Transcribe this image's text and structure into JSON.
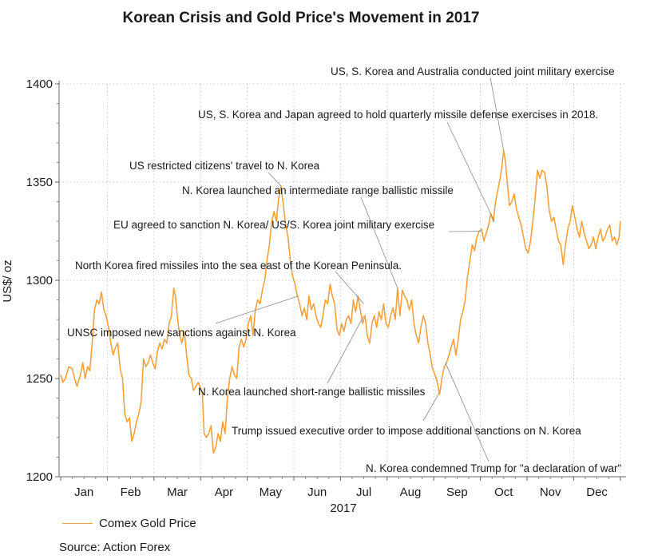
{
  "chart_data": {
    "type": "line",
    "title": "Korean Crisis and Gold Price's Movement in 2017",
    "xlabel": "2017",
    "ylabel": "US$/ oz",
    "ylim": [
      1200,
      1400
    ],
    "yticks": [
      1200,
      1250,
      1300,
      1350,
      1400
    ],
    "months": [
      "Jan",
      "Feb",
      "Mar",
      "Apr",
      "May",
      "Jun",
      "Jul",
      "Aug",
      "Sep",
      "Oct",
      "Nov",
      "Dec"
    ],
    "grid": true,
    "legend": "bottom-left",
    "series": [
      {
        "name": "Comex Gold Price",
        "color": "#f5a13a",
        "points": [
          [
            0.0,
            1252
          ],
          [
            0.1,
            1248
          ],
          [
            0.2,
            1250
          ],
          [
            0.35,
            1256
          ],
          [
            0.5,
            1255
          ],
          [
            0.6,
            1250
          ],
          [
            0.7,
            1246
          ],
          [
            0.85,
            1252
          ],
          [
            0.95,
            1258
          ],
          [
            1.05,
            1250
          ],
          [
            1.15,
            1256
          ],
          [
            1.25,
            1254
          ],
          [
            1.35,
            1268
          ],
          [
            1.45,
            1285
          ],
          [
            1.55,
            1290
          ],
          [
            1.65,
            1288
          ],
          [
            1.75,
            1294
          ],
          [
            1.85,
            1285
          ],
          [
            1.95,
            1282
          ],
          [
            2.05,
            1276
          ],
          [
            2.15,
            1268
          ],
          [
            2.25,
            1262
          ],
          [
            2.35,
            1266
          ],
          [
            2.45,
            1268
          ],
          [
            2.55,
            1255
          ],
          [
            2.65,
            1250
          ],
          [
            2.75,
            1232
          ],
          [
            2.85,
            1228
          ],
          [
            2.95,
            1230
          ],
          [
            3.05,
            1218
          ],
          [
            3.15,
            1222
          ],
          [
            3.25,
            1228
          ],
          [
            3.35,
            1232
          ],
          [
            3.45,
            1238
          ],
          [
            3.55,
            1260
          ],
          [
            3.65,
            1256
          ],
          [
            3.75,
            1258
          ],
          [
            3.85,
            1262
          ],
          [
            3.95,
            1258
          ],
          [
            4.05,
            1255
          ],
          [
            4.15,
            1264
          ],
          [
            4.25,
            1268
          ],
          [
            4.35,
            1265
          ],
          [
            4.45,
            1270
          ],
          [
            4.55,
            1268
          ],
          [
            4.65,
            1278
          ],
          [
            4.75,
            1282
          ],
          [
            4.85,
            1296
          ],
          [
            4.92,
            1292
          ],
          [
            5.0,
            1282
          ],
          [
            5.1,
            1272
          ],
          [
            5.2,
            1268
          ],
          [
            5.3,
            1274
          ],
          [
            5.4,
            1262
          ],
          [
            5.5,
            1252
          ],
          [
            5.6,
            1250
          ],
          [
            5.7,
            1244
          ],
          [
            5.8,
            1246
          ],
          [
            5.9,
            1248
          ],
          [
            6.0,
            1245
          ],
          [
            6.08,
            1242
          ],
          [
            6.15,
            1222
          ],
          [
            6.25,
            1220
          ],
          [
            6.35,
            1222
          ],
          [
            6.45,
            1226
          ],
          [
            6.55,
            1212
          ],
          [
            6.65,
            1215
          ],
          [
            6.75,
            1222
          ],
          [
            6.85,
            1218
          ],
          [
            6.95,
            1228
          ],
          [
            7.05,
            1222
          ],
          [
            7.15,
            1240
          ],
          [
            7.25,
            1250
          ],
          [
            7.35,
            1256
          ],
          [
            7.45,
            1252
          ],
          [
            7.55,
            1250
          ],
          [
            7.65,
            1266
          ],
          [
            7.75,
            1270
          ],
          [
            7.85,
            1266
          ],
          [
            7.95,
            1270
          ],
          [
            8.05,
            1278
          ],
          [
            8.15,
            1282
          ],
          [
            8.25,
            1272
          ],
          [
            8.35,
            1285
          ],
          [
            8.45,
            1290
          ],
          [
            8.55,
            1288
          ],
          [
            8.65,
            1295
          ],
          [
            8.75,
            1300
          ],
          [
            8.85,
            1310
          ],
          [
            8.95,
            1318
          ],
          [
            9.05,
            1330
          ],
          [
            9.15,
            1335
          ],
          [
            9.25,
            1330
          ],
          [
            9.35,
            1342
          ],
          [
            9.45,
            1348
          ],
          [
            9.55,
            1338
          ],
          [
            9.65,
            1328
          ],
          [
            9.75,
            1322
          ],
          [
            9.85,
            1310
          ],
          [
            9.95,
            1302
          ],
          [
            10.05,
            1298
          ],
          [
            10.15,
            1292
          ],
          [
            10.25,
            1288
          ],
          [
            10.35,
            1282
          ],
          [
            10.45,
            1286
          ],
          [
            10.55,
            1280
          ],
          [
            10.65,
            1292
          ],
          [
            10.75,
            1285
          ],
          [
            10.85,
            1288
          ],
          [
            10.95,
            1282
          ],
          [
            11.05,
            1278
          ],
          [
            11.15,
            1276
          ],
          [
            11.25,
            1282
          ],
          [
            11.35,
            1290
          ],
          [
            11.45,
            1288
          ],
          [
            11.55,
            1298
          ],
          [
            11.65,
            1292
          ],
          [
            11.75,
            1288
          ],
          [
            11.85,
            1275
          ],
          [
            11.95,
            1272
          ],
          [
            12.05,
            1278
          ],
          [
            12.15,
            1274
          ],
          [
            12.25,
            1280
          ],
          [
            12.35,
            1282
          ],
          [
            12.45,
            1278
          ],
          [
            12.55,
            1290
          ],
          [
            12.65,
            1284
          ],
          [
            12.75,
            1292
          ],
          [
            12.85,
            1285
          ],
          [
            12.95,
            1278
          ],
          [
            13.05,
            1282
          ],
          [
            13.15,
            1272
          ],
          [
            13.25,
            1268
          ],
          [
            13.35,
            1278
          ],
          [
            13.45,
            1282
          ],
          [
            13.55,
            1276
          ],
          [
            13.65,
            1284
          ],
          [
            13.75,
            1280
          ],
          [
            13.85,
            1288
          ],
          [
            13.95,
            1278
          ],
          [
            14.05,
            1276
          ],
          [
            14.15,
            1282
          ],
          [
            14.25,
            1286
          ],
          [
            14.35,
            1280
          ],
          [
            14.45,
            1296
          ],
          [
            14.55,
            1282
          ],
          [
            14.65,
            1295
          ],
          [
            14.75,
            1292
          ],
          [
            14.85,
            1290
          ],
          [
            14.95,
            1285
          ],
          [
            15.05,
            1290
          ],
          [
            15.15,
            1278
          ],
          [
            15.25,
            1272
          ],
          [
            15.35,
            1268
          ],
          [
            15.45,
            1276
          ],
          [
            15.55,
            1282
          ],
          [
            15.65,
            1278
          ],
          [
            15.75,
            1268
          ],
          [
            15.85,
            1262
          ],
          [
            15.95,
            1255
          ],
          [
            16.05,
            1252
          ],
          [
            16.15,
            1248
          ],
          [
            16.25,
            1242
          ],
          [
            16.35,
            1250
          ],
          [
            16.45,
            1256
          ],
          [
            16.55,
            1258
          ],
          [
            16.65,
            1262
          ],
          [
            16.75,
            1266
          ],
          [
            16.85,
            1270
          ],
          [
            16.95,
            1262
          ],
          [
            17.05,
            1270
          ],
          [
            17.15,
            1280
          ],
          [
            17.25,
            1284
          ],
          [
            17.35,
            1290
          ],
          [
            17.45,
            1302
          ],
          [
            17.55,
            1310
          ],
          [
            17.65,
            1318
          ],
          [
            17.75,
            1315
          ],
          [
            17.85,
            1322
          ],
          [
            17.95,
            1325
          ],
          [
            18.05,
            1326
          ],
          [
            18.15,
            1320
          ],
          [
            18.25,
            1324
          ],
          [
            18.35,
            1328
          ],
          [
            18.45,
            1334
          ],
          [
            18.55,
            1330
          ],
          [
            18.65,
            1340
          ],
          [
            18.75,
            1346
          ],
          [
            18.85,
            1352
          ],
          [
            18.92,
            1358
          ],
          [
            19.0,
            1366
          ],
          [
            19.08,
            1360
          ],
          [
            19.15,
            1350
          ],
          [
            19.25,
            1338
          ],
          [
            19.35,
            1340
          ],
          [
            19.45,
            1344
          ],
          [
            19.55,
            1336
          ],
          [
            19.65,
            1332
          ],
          [
            19.75,
            1328
          ],
          [
            19.85,
            1322
          ],
          [
            19.95,
            1316
          ],
          [
            20.05,
            1314
          ],
          [
            20.15,
            1320
          ],
          [
            20.25,
            1330
          ],
          [
            20.35,
            1342
          ],
          [
            20.45,
            1356
          ],
          [
            20.55,
            1352
          ],
          [
            20.65,
            1356
          ],
          [
            20.75,
            1355
          ],
          [
            20.85,
            1348
          ],
          [
            20.95,
            1336
          ],
          [
            21.05,
            1330
          ],
          [
            21.15,
            1332
          ],
          [
            21.25,
            1326
          ],
          [
            21.35,
            1320
          ],
          [
            21.45,
            1318
          ],
          [
            21.55,
            1308
          ],
          [
            21.65,
            1318
          ],
          [
            21.75,
            1326
          ],
          [
            21.85,
            1330
          ],
          [
            21.95,
            1338
          ],
          [
            22.05,
            1332
          ],
          [
            22.15,
            1326
          ],
          [
            22.25,
            1322
          ],
          [
            22.35,
            1330
          ],
          [
            22.45,
            1324
          ],
          [
            22.55,
            1320
          ],
          [
            22.65,
            1316
          ],
          [
            22.75,
            1318
          ],
          [
            22.85,
            1322
          ],
          [
            22.95,
            1316
          ],
          [
            23.05,
            1322
          ],
          [
            23.15,
            1326
          ],
          [
            23.25,
            1320
          ],
          [
            23.35,
            1322
          ],
          [
            23.45,
            1326
          ],
          [
            23.55,
            1328
          ],
          [
            23.65,
            1320
          ],
          [
            23.75,
            1322
          ],
          [
            23.85,
            1318
          ],
          [
            23.95,
            1322
          ],
          [
            24.0,
            1330
          ]
        ]
      }
    ],
    "annotations": [
      {
        "id": "a1",
        "text": "US, S. Korea and Australia conducted joint military exercise"
      },
      {
        "id": "a2",
        "text": "US, S. Korea and Japan agreed to hold quarterly missile defense exercises in 2018."
      },
      {
        "id": "a3",
        "text": "US restricted citizens' travel to N. Korea"
      },
      {
        "id": "a4",
        "text": "N. Korea launched an intermediate range ballistic missile"
      },
      {
        "id": "a5",
        "text": "EU agreed to sanction N. Korea/ US/S. Korea joint military exercise"
      },
      {
        "id": "a6",
        "text": "North Korea fired missiles into the sea east of the Korean Peninsula."
      },
      {
        "id": "a7",
        "text": "UNSC imposed new sanctions against N. Korea"
      },
      {
        "id": "a8",
        "text": "N. Korea launched short-range ballistic missiles"
      },
      {
        "id": "a9",
        "text": "Trump issued executive order to impose additional sanctions on N. Korea"
      },
      {
        "id": "a10",
        "text": "N. Korea condemned Trump for \"a declaration of war\""
      }
    ]
  },
  "source": "Source: Action Forex"
}
